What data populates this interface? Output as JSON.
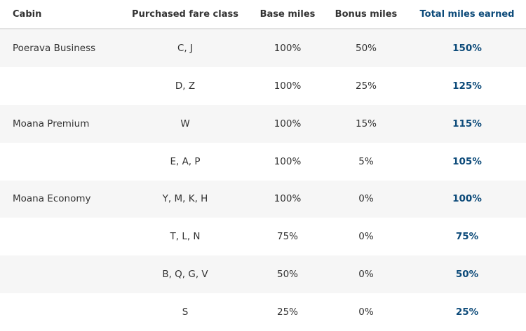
{
  "table": {
    "headers": {
      "cabin": "Cabin",
      "fare_class": "Purchased fare class",
      "base": "Base miles",
      "bonus": "Bonus miles",
      "total": "Total miles earned"
    },
    "rows": [
      {
        "cabin": "Poerava Business",
        "fare_class": "C, J",
        "base": "100%",
        "bonus": "50%",
        "total": "150%"
      },
      {
        "fare_class": "D, Z",
        "base": "100%",
        "bonus": "25%",
        "total": "125%"
      },
      {
        "cabin": "Moana Premium",
        "fare_class": "W",
        "base": "100%",
        "bonus": "15%",
        "total": "115%"
      },
      {
        "fare_class": "E, A, P",
        "base": "100%",
        "bonus": "5%",
        "total": "105%"
      },
      {
        "cabin": "Moana Economy",
        "fare_class": "Y, M, K, H",
        "base": "100%",
        "bonus": "0%",
        "total": "100%"
      },
      {
        "fare_class": "T, L, N",
        "base": "75%",
        "bonus": "0%",
        "total": "75%"
      },
      {
        "fare_class": "B, Q, G, V",
        "base": "50%",
        "bonus": "0%",
        "total": "50%"
      },
      {
        "fare_class": "S",
        "base": "25%",
        "bonus": "0%",
        "total": "25%"
      }
    ]
  }
}
